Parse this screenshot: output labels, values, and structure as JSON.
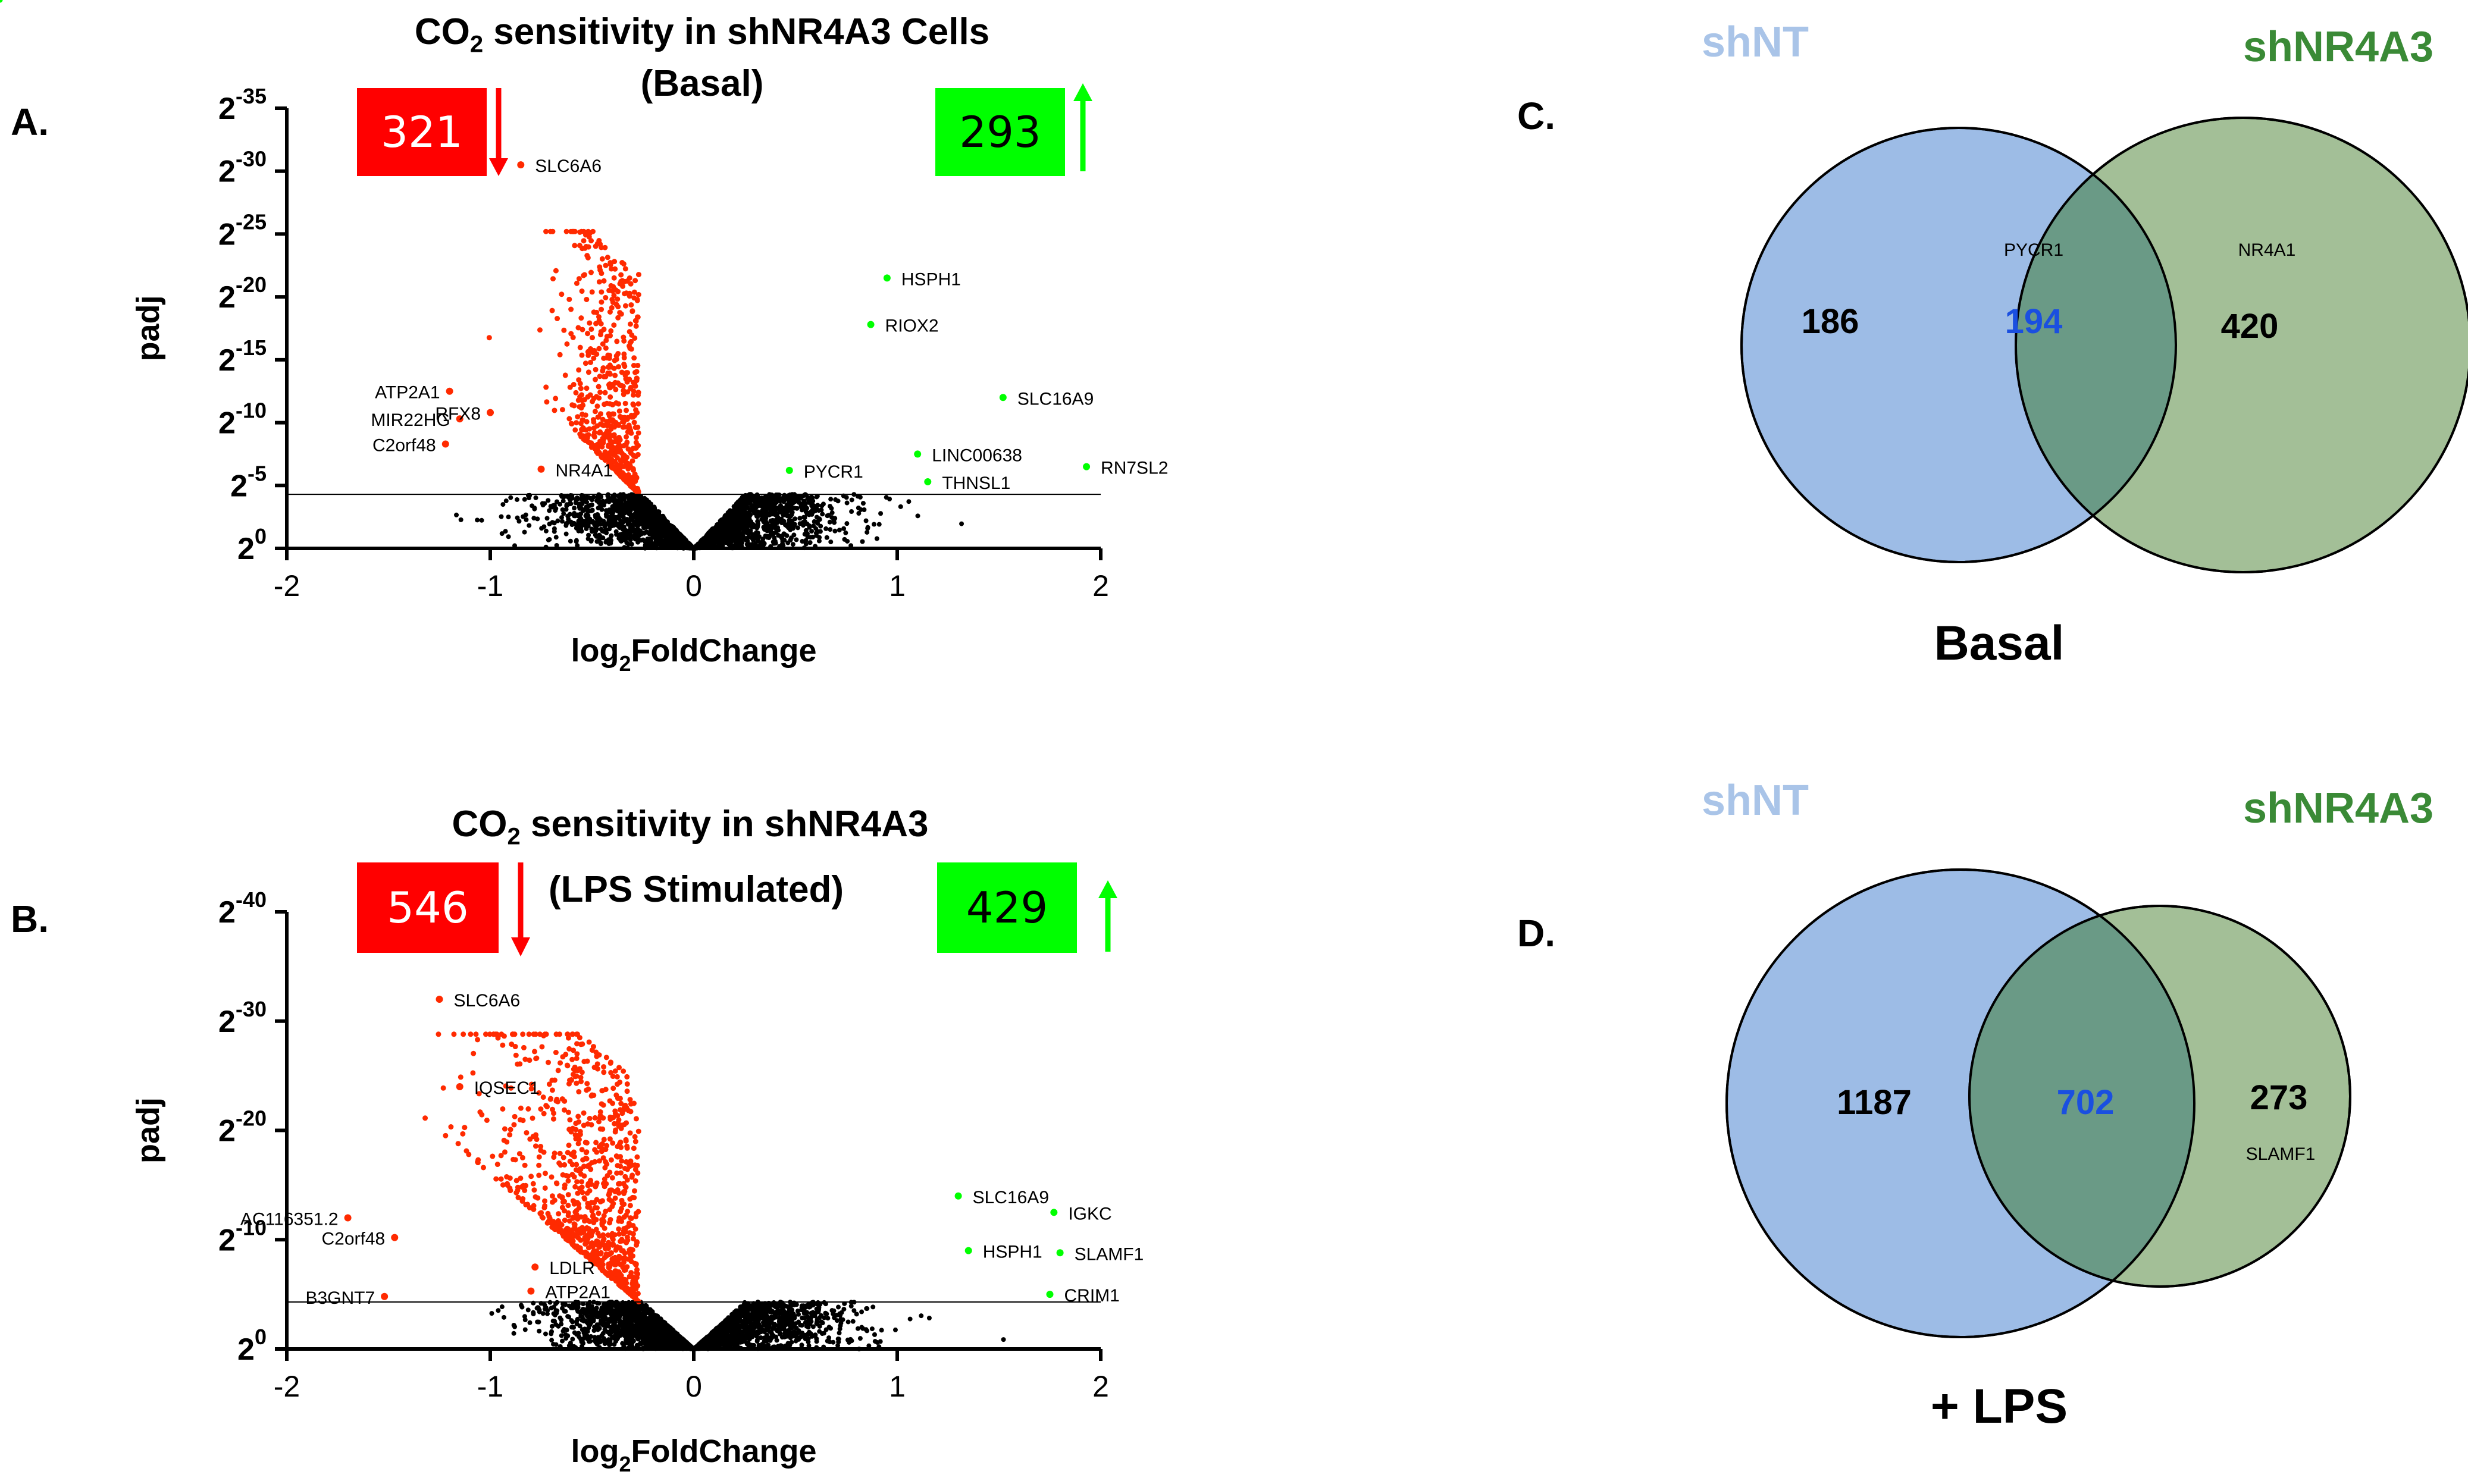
{
  "panels": [
    {
      "letter": "A.",
      "title_prefix": "CO",
      "title_sub": "2",
      "title_rest": " sensitivity in shNR4A3 Cells",
      "title_line2": "(Basal)",
      "down_count": "321",
      "up_count": "293"
    },
    {
      "letter": "B.",
      "title_prefix": "CO",
      "title_sub": "2",
      "title_rest": " sensitivity in shNR4A3",
      "title_line2": "(LPS Stimulated)",
      "down_count": "546",
      "up_count": "429"
    },
    {
      "letter": "C."
    },
    {
      "letter": "D."
    }
  ],
  "chart_data": [
    {
      "type": "scatter",
      "subtype": "volcano",
      "ylabel": "padj",
      "xlabel_main": "log",
      "xlabel_sub": "2",
      "xlabel_rest": "FoldChange",
      "xlim": [
        -2,
        2
      ],
      "xticks": [
        "-2",
        "-1",
        "0",
        "1",
        "2"
      ],
      "ylim_exp": [
        0,
        35
      ],
      "ytick_exps": [
        "0",
        "-5",
        "-10",
        "-15",
        "-20",
        "-25",
        "-30",
        "-35"
      ],
      "ytick_base": "2",
      "threshold_exp": 4.3,
      "colors": {
        "down": "#ff2a00",
        "up": "#00ff00",
        "ns": "#000000"
      },
      "labeled_genes": [
        {
          "gene": "SLC6A6",
          "x": -0.85,
          "y_exp": 30.5,
          "group": "down"
        },
        {
          "gene": "ATP2A1",
          "x": -1.2,
          "y_exp": 12.5,
          "group": "down"
        },
        {
          "gene": "MIR22HG",
          "x": -1.15,
          "y_exp": 10.3,
          "group": "down"
        },
        {
          "gene": "RFX8",
          "x": -1.0,
          "y_exp": 10.8,
          "group": "down"
        },
        {
          "gene": "C2orf48",
          "x": -1.22,
          "y_exp": 8.3,
          "group": "down"
        },
        {
          "gene": "NR4A1",
          "x": -0.75,
          "y_exp": 6.3,
          "group": "down"
        },
        {
          "gene": "HSPH1",
          "x": 0.95,
          "y_exp": 21.5,
          "group": "up"
        },
        {
          "gene": "RIOX2",
          "x": 0.87,
          "y_exp": 17.8,
          "group": "up"
        },
        {
          "gene": "SLC16A9",
          "x": 1.52,
          "y_exp": 12.0,
          "group": "up"
        },
        {
          "gene": "LINC00638",
          "x": 1.1,
          "y_exp": 7.5,
          "group": "up"
        },
        {
          "gene": "THNSL1",
          "x": 1.15,
          "y_exp": 5.3,
          "group": "up"
        },
        {
          "gene": "RN7SL2",
          "x": 1.93,
          "y_exp": 6.5,
          "group": "up"
        },
        {
          "gene": "PYCR1",
          "x": 0.47,
          "y_exp": 6.2,
          "group": "up"
        }
      ]
    },
    {
      "type": "scatter",
      "subtype": "volcano",
      "ylabel": "padj",
      "xlabel_main": "log",
      "xlabel_sub": "2",
      "xlabel_rest": "FoldChange",
      "xlim": [
        -2,
        2
      ],
      "xticks": [
        "-2",
        "-1",
        "0",
        "1",
        "2"
      ],
      "ylim_exp": [
        0,
        40
      ],
      "ytick_exps": [
        "0",
        "-10",
        "-20",
        "-30",
        "-40"
      ],
      "ytick_base": "2",
      "threshold_exp": 4.3,
      "colors": {
        "down": "#ff2a00",
        "up": "#00ff00",
        "ns": "#000000"
      },
      "labeled_genes": [
        {
          "gene": "SLC6A6",
          "x": -1.25,
          "y_exp": 32.0,
          "group": "down"
        },
        {
          "gene": "IQSEC1",
          "x": -1.15,
          "y_exp": 24.0,
          "group": "down"
        },
        {
          "gene": "AC116351.2",
          "x": -1.7,
          "y_exp": 12.0,
          "group": "down"
        },
        {
          "gene": "C2orf48",
          "x": -1.47,
          "y_exp": 10.2,
          "group": "down"
        },
        {
          "gene": "LDLR",
          "x": -0.78,
          "y_exp": 7.5,
          "group": "down"
        },
        {
          "gene": "ATP2A1",
          "x": -0.8,
          "y_exp": 5.3,
          "group": "down"
        },
        {
          "gene": "B3GNT7",
          "x": -1.52,
          "y_exp": 4.8,
          "group": "down"
        },
        {
          "gene": "SLC16A9",
          "x": 1.3,
          "y_exp": 14.0,
          "group": "up"
        },
        {
          "gene": "IGKC",
          "x": 1.77,
          "y_exp": 12.5,
          "group": "up"
        },
        {
          "gene": "HSPH1",
          "x": 1.35,
          "y_exp": 9.0,
          "group": "up"
        },
        {
          "gene": "SLAMF1",
          "x": 1.8,
          "y_exp": 8.8,
          "group": "up"
        },
        {
          "gene": "CRIM1",
          "x": 1.75,
          "y_exp": 5.0,
          "group": "up"
        }
      ]
    },
    {
      "type": "venn",
      "sets": [
        {
          "name": "shNT",
          "color": "#a9c4e8"
        },
        {
          "name": "shNR4A3",
          "color": "#3a8a36"
        }
      ],
      "only_a": "186",
      "intersection": "194",
      "only_b": "420",
      "intersection_gene": "PYCR1",
      "only_b_gene": "NR4A1",
      "condition": "Basal",
      "colors": {
        "a_fill": "#9dbce6",
        "b_fill": "#a3bf97",
        "overlap": "#6a9a86",
        "intersection_text": "#1a4fe0"
      }
    },
    {
      "type": "venn",
      "sets": [
        {
          "name": "shNT",
          "color": "#a9c4e8"
        },
        {
          "name": "shNR4A3",
          "color": "#3a8a36"
        }
      ],
      "only_a": "1187",
      "intersection": "702",
      "only_b": "273",
      "only_b_gene": "SLAMF1",
      "condition": "+ LPS",
      "colors": {
        "a_fill": "#9dbce6",
        "b_fill": "#a3bf97",
        "overlap": "#6a9a86",
        "intersection_text": "#1a4fe0"
      }
    }
  ]
}
